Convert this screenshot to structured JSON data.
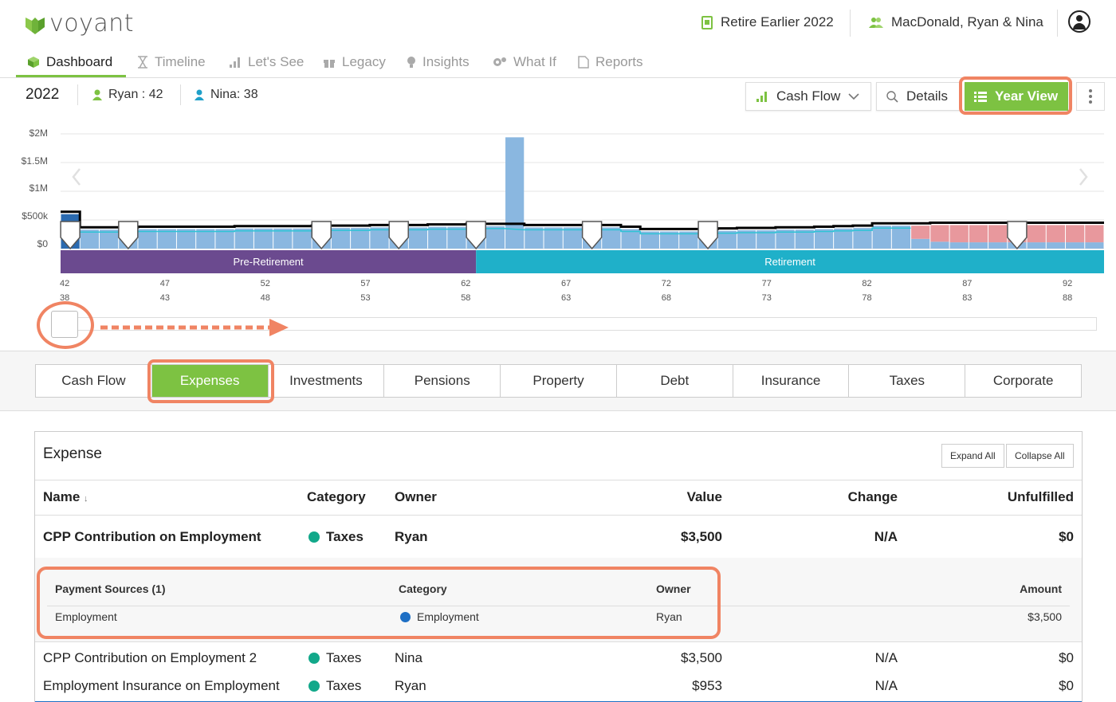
{
  "header": {
    "logo_text": "voyant",
    "plan_name": "Retire Earlier 2022",
    "client_name": "MacDonald, Ryan & Nina"
  },
  "nav": {
    "items": [
      {
        "label": "Dashboard",
        "icon": "cube-icon",
        "active": true
      },
      {
        "label": "Timeline",
        "icon": "hourglass-icon"
      },
      {
        "label": "Let's See",
        "icon": "bar-chart-icon"
      },
      {
        "label": "Legacy",
        "icon": "gift-icon"
      },
      {
        "label": "Insights",
        "icon": "lightbulb-icon"
      },
      {
        "label": "What If",
        "icon": "gears-icon"
      },
      {
        "label": "Reports",
        "icon": "pdf-icon"
      }
    ]
  },
  "subheader": {
    "year": "2022",
    "person1": "Ryan : 42",
    "person2": "Nina: 38",
    "view_select": "Cash Flow",
    "details_label": "Details",
    "year_view_label": "Year View"
  },
  "chart_data": {
    "type": "bar",
    "ytick_labels": [
      "$2M",
      "$1.5M",
      "$1M",
      "$500k",
      "$0"
    ],
    "ylim": [
      0,
      2000000
    ],
    "phases": [
      {
        "label": "Pre-Retirement",
        "color": "#6b4a8f"
      },
      {
        "label": "Retirement",
        "color": "#1fb0c9"
      }
    ],
    "ages_ryan": [
      "42",
      "47",
      "52",
      "57",
      "62",
      "67",
      "72",
      "77",
      "82",
      "87",
      "92"
    ],
    "ages_nina": [
      "38",
      "43",
      "48",
      "53",
      "58",
      "63",
      "68",
      "73",
      "78",
      "83",
      "88"
    ],
    "series": [
      {
        "values": [
          600000,
          330000,
          330000,
          330000,
          340000,
          340000,
          340000,
          340000,
          340000,
          350000,
          350000,
          350000,
          350000,
          360000,
          360000,
          360000,
          370000,
          370000,
          370000,
          380000,
          380000,
          390000,
          390000,
          1940000,
          370000,
          370000,
          370000,
          370000,
          370000,
          340000,
          300000,
          300000,
          300000,
          300000,
          310000,
          320000,
          320000,
          330000,
          330000,
          340000,
          350000,
          360000,
          400000,
          400000,
          170000,
          120000,
          110000,
          110000,
          110000,
          110000,
          110000,
          110000,
          110000,
          110000
        ]
      },
      {
        "values": [
          0,
          0,
          0,
          0,
          0,
          0,
          0,
          0,
          0,
          0,
          0,
          0,
          0,
          0,
          0,
          0,
          0,
          0,
          0,
          0,
          0,
          0,
          0,
          0,
          0,
          0,
          0,
          0,
          0,
          0,
          0,
          0,
          0,
          0,
          0,
          0,
          0,
          0,
          0,
          0,
          0,
          0,
          0,
          0,
          230000,
          290000,
          300000,
          300000,
          300000,
          300000,
          300000,
          300000,
          300000,
          300000
        ]
      }
    ],
    "colors": {
      "bar": "#8ab7e0",
      "bar_dark": "#2a6ab0",
      "shortfall": "#e8989d",
      "line": "#000000",
      "accent": "#2ec4d6"
    }
  },
  "tabs": [
    "Cash Flow",
    "Expenses",
    "Investments",
    "Pensions",
    "Property",
    "Debt",
    "Insurance",
    "Taxes",
    "Corporate"
  ],
  "active_tab": "Expenses",
  "table": {
    "title": "Expense",
    "expand_all": "Expand All",
    "collapse_all": "Collapse All",
    "headers": {
      "name": "Name",
      "category": "Category",
      "owner": "Owner",
      "value": "Value",
      "change": "Change",
      "unfulfilled": "Unfulfilled"
    },
    "rows": [
      {
        "name": "CPP Contribution on Employment",
        "category": "Taxes",
        "owner": "Ryan",
        "value": "$3,500",
        "change": "N/A",
        "unfulfilled": "$0"
      },
      {
        "name": "CPP Contribution on Employment 2",
        "category": "Taxes",
        "owner": "Nina",
        "value": "$3,500",
        "change": "N/A",
        "unfulfilled": "$0"
      },
      {
        "name": "Employment Insurance on Employment",
        "category": "Taxes",
        "owner": "Ryan",
        "value": "$953",
        "change": "N/A",
        "unfulfilled": "$0"
      }
    ],
    "payment_sources": {
      "headers": {
        "title": "Payment Sources (1)",
        "category": "Category",
        "owner": "Owner",
        "amount": "Amount"
      },
      "row": {
        "name": "Employment",
        "category": "Employment",
        "owner": "Ryan",
        "amount": "$3,500"
      }
    },
    "colors": {
      "taxes_dot": "#12a88a",
      "employment_dot": "#1e6fc4"
    }
  }
}
